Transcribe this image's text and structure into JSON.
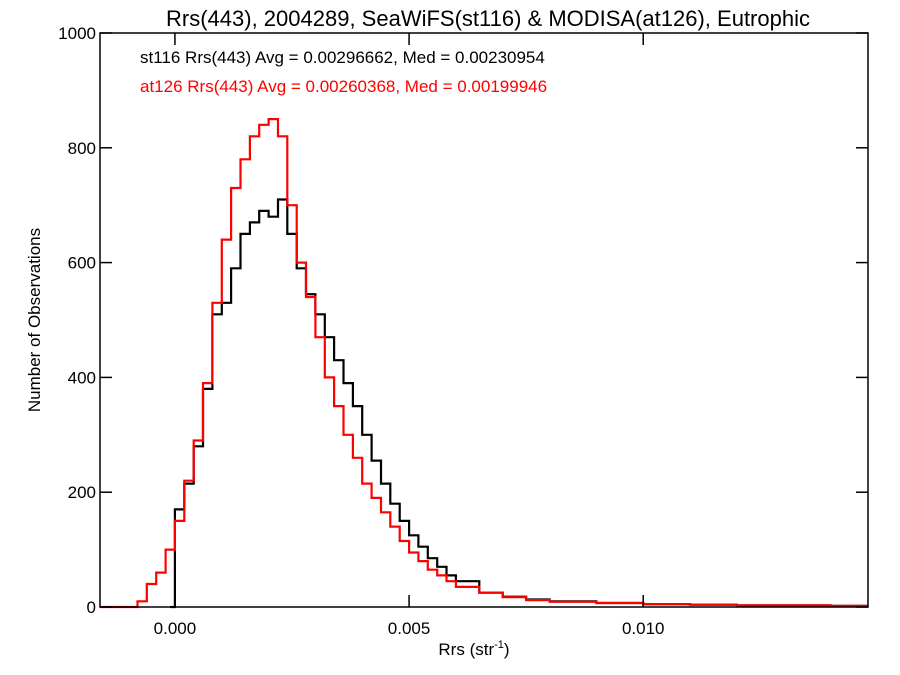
{
  "chart_data": {
    "type": "line",
    "title": "Rrs(443), 2004289, SeaWiFS(st116) & MODISA(at126), Eutrophic",
    "xlabel": "Rrs (str",
    "xlabel_sup": "-1",
    "xlabel_close": ")",
    "ylabel": "Number of Observations",
    "xlim": [
      -0.0016,
      0.0148
    ],
    "ylim": [
      0,
      1000
    ],
    "x_ticks": [
      0.0,
      0.005,
      0.01
    ],
    "x_tick_labels": [
      "0.000",
      "0.005",
      "0.010"
    ],
    "y_ticks": [
      0,
      200,
      400,
      600,
      800,
      1000
    ],
    "y_tick_labels": [
      "0",
      "200",
      "400",
      "600",
      "800",
      "1000"
    ],
    "grid": false,
    "legend_position": "top-left",
    "series": [
      {
        "name": "st116",
        "color": "#000000",
        "stats_label": "st116 Rrs(443) Avg = 0.00296662, Med = 0.00230954",
        "x": [
          -0.0001,
          0.0,
          0.0002,
          0.0004,
          0.0006,
          0.0008,
          0.001,
          0.0012,
          0.0014,
          0.0016,
          0.0018,
          0.002,
          0.0022,
          0.0024,
          0.0026,
          0.0028,
          0.003,
          0.0032,
          0.0034,
          0.0036,
          0.0038,
          0.004,
          0.0042,
          0.0044,
          0.0046,
          0.0048,
          0.005,
          0.0052,
          0.0054,
          0.0056,
          0.0058,
          0.006,
          0.0065,
          0.007,
          0.0075,
          0.008,
          0.009,
          0.01,
          0.011,
          0.012,
          0.013,
          0.014,
          0.0148
        ],
        "y": [
          0,
          170,
          215,
          280,
          380,
          510,
          530,
          590,
          650,
          670,
          690,
          680,
          710,
          650,
          590,
          545,
          510,
          470,
          430,
          390,
          350,
          300,
          255,
          215,
          180,
          150,
          125,
          105,
          85,
          70,
          55,
          45,
          25,
          18,
          13,
          10,
          7,
          5,
          4,
          3,
          3,
          2,
          2
        ]
      },
      {
        "name": "at126",
        "color": "#ff0000",
        "stats_label": "at126 Rrs(443) Avg = 0.00260368, Med = 0.00199946",
        "x": [
          -0.0016,
          -0.001,
          -0.0008,
          -0.0006,
          -0.0004,
          -0.0002,
          0.0,
          0.0002,
          0.0004,
          0.0006,
          0.0008,
          0.001,
          0.0012,
          0.0014,
          0.0016,
          0.0018,
          0.002,
          0.0022,
          0.0024,
          0.0026,
          0.0028,
          0.003,
          0.0032,
          0.0034,
          0.0036,
          0.0038,
          0.004,
          0.0042,
          0.0044,
          0.0046,
          0.0048,
          0.005,
          0.0052,
          0.0054,
          0.0056,
          0.0058,
          0.006,
          0.0065,
          0.007,
          0.0075,
          0.008,
          0.009,
          0.01,
          0.011,
          0.012,
          0.013,
          0.014,
          0.0148
        ],
        "y": [
          0,
          0,
          10,
          40,
          60,
          100,
          150,
          220,
          290,
          390,
          530,
          640,
          730,
          780,
          820,
          840,
          850,
          820,
          700,
          600,
          540,
          470,
          400,
          350,
          300,
          260,
          215,
          190,
          165,
          140,
          115,
          95,
          80,
          65,
          55,
          45,
          35,
          25,
          17,
          12,
          9,
          7,
          5,
          4,
          3,
          3,
          2,
          2
        ]
      }
    ]
  }
}
